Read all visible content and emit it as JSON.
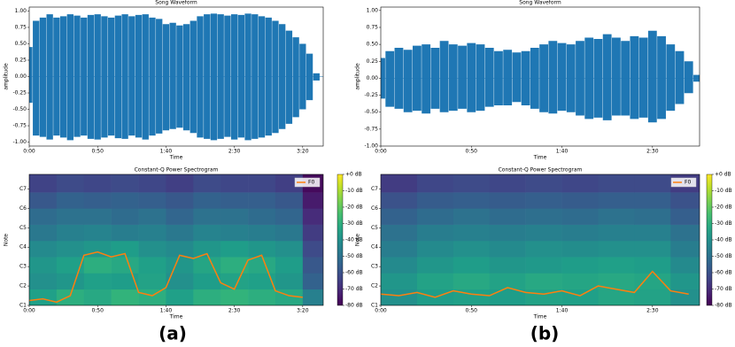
{
  "chart_data": [
    {
      "type": "area",
      "title": "Song Waveform",
      "xlabel": "Time",
      "ylabel": "amplitude",
      "color": "#1f77b4",
      "xlim": [
        0,
        215
      ],
      "ylim": [
        -1.06,
        1.06
      ],
      "xticks": [
        {
          "value": 0,
          "label": "0:00"
        },
        {
          "value": 50,
          "label": "0:50"
        },
        {
          "value": 100,
          "label": "1:40"
        },
        {
          "value": 150,
          "label": "2:30"
        },
        {
          "value": 200,
          "label": "3:20"
        }
      ],
      "yticks": [
        {
          "value": -1,
          "label": "-1.00"
        },
        {
          "value": -0.75,
          "label": "-0.75"
        },
        {
          "value": -0.5,
          "label": "-0.50"
        },
        {
          "value": -0.25,
          "label": "-0.25"
        },
        {
          "value": 0,
          "label": "0.00"
        },
        {
          "value": 0.25,
          "label": "0.25"
        },
        {
          "value": 0.5,
          "label": "0.50"
        },
        {
          "value": 0.75,
          "label": "0.75"
        },
        {
          "value": 1,
          "label": "1.00"
        }
      ],
      "x": [
        0,
        5,
        10,
        15,
        20,
        25,
        30,
        35,
        40,
        45,
        50,
        55,
        60,
        65,
        70,
        75,
        80,
        85,
        90,
        95,
        100,
        105,
        110,
        115,
        120,
        125,
        130,
        135,
        140,
        145,
        150,
        155,
        160,
        165,
        170,
        175,
        180,
        185,
        190,
        195,
        200,
        205,
        210,
        215
      ],
      "upper": [
        0.45,
        0.85,
        0.9,
        0.95,
        0.9,
        0.92,
        0.95,
        0.93,
        0.9,
        0.94,
        0.95,
        0.92,
        0.9,
        0.93,
        0.95,
        0.92,
        0.94,
        0.95,
        0.9,
        0.88,
        0.8,
        0.82,
        0.78,
        0.8,
        0.85,
        0.92,
        0.95,
        0.96,
        0.95,
        0.93,
        0.95,
        0.94,
        0.96,
        0.95,
        0.92,
        0.9,
        0.85,
        0.8,
        0.7,
        0.6,
        0.5,
        0.35,
        0.05,
        0
      ],
      "lower": [
        -0.4,
        -0.9,
        -0.92,
        -0.96,
        -0.9,
        -0.93,
        -0.97,
        -0.92,
        -0.9,
        -0.95,
        -0.96,
        -0.93,
        -0.9,
        -0.94,
        -0.95,
        -0.9,
        -0.93,
        -0.96,
        -0.9,
        -0.87,
        -0.82,
        -0.8,
        -0.78,
        -0.82,
        -0.86,
        -0.93,
        -0.95,
        -0.97,
        -0.95,
        -0.92,
        -0.96,
        -0.93,
        -0.97,
        -0.95,
        -0.93,
        -0.9,
        -0.86,
        -0.8,
        -0.72,
        -0.62,
        -0.5,
        -0.36,
        -0.06,
        0
      ]
    },
    {
      "type": "heatmap",
      "title": "Constant-Q Power Spectrogram",
      "xlabel": "Time",
      "ylabel": "Note",
      "xlim": [
        0,
        215
      ],
      "ylim": [
        24,
        105
      ],
      "zlim": [
        -80,
        0
      ],
      "legend": "upper right",
      "xticks": [
        {
          "value": 0,
          "label": "0:00"
        },
        {
          "value": 50,
          "label": "0:50"
        },
        {
          "value": 100,
          "label": "1:40"
        },
        {
          "value": 150,
          "label": "2:30"
        },
        {
          "value": 200,
          "label": "3:20"
        }
      ],
      "yticks": [
        {
          "value": 24,
          "label": "C1"
        },
        {
          "value": 36,
          "label": "C2"
        },
        {
          "value": 48,
          "label": "C3"
        },
        {
          "value": 60,
          "label": "C4"
        },
        {
          "value": 72,
          "label": "C5"
        },
        {
          "value": 84,
          "label": "C6"
        },
        {
          "value": 96,
          "label": "C7"
        }
      ],
      "zticks": [
        {
          "value": 0,
          "label": "+0 dB"
        },
        {
          "value": -10,
          "label": "-10 dB"
        },
        {
          "value": -20,
          "label": "-20 dB"
        },
        {
          "value": -30,
          "label": "-30 dB"
        },
        {
          "value": -40,
          "label": "-40 dB"
        },
        {
          "value": -50,
          "label": "-50 dB"
        },
        {
          "value": -60,
          "label": "-60 dB"
        },
        {
          "value": -70,
          "label": "-70 dB"
        },
        {
          "value": -80,
          "label": "-80 dB"
        }
      ],
      "bins": [
        0,
        20,
        40,
        60,
        80,
        100,
        120,
        140,
        160,
        180,
        200,
        215
      ],
      "note_bins": [
        24,
        34,
        44,
        54,
        64,
        74,
        84,
        94,
        105
      ],
      "z": [
        [
          -35,
          -30,
          -32,
          -28,
          -30,
          -35,
          -30,
          -28,
          -30,
          -32,
          -45
        ],
        [
          -40,
          -38,
          -35,
          -36,
          -34,
          -40,
          -36,
          -34,
          -35,
          -38,
          -55
        ],
        [
          -38,
          -35,
          -30,
          -32,
          -35,
          -38,
          -33,
          -30,
          -32,
          -36,
          -58
        ],
        [
          -42,
          -40,
          -38,
          -36,
          -40,
          -42,
          -38,
          -36,
          -38,
          -40,
          -62
        ],
        [
          -48,
          -45,
          -44,
          -46,
          -45,
          -48,
          -44,
          -45,
          -46,
          -48,
          -66
        ],
        [
          -52,
          -50,
          -50,
          -52,
          -50,
          -54,
          -50,
          -50,
          -52,
          -54,
          -70
        ],
        [
          -58,
          -55,
          -56,
          -55,
          -56,
          -58,
          -55,
          -56,
          -56,
          -58,
          -74
        ],
        [
          -64,
          -62,
          -63,
          -62,
          -63,
          -65,
          -62,
          -63,
          -63,
          -65,
          -78
        ]
      ],
      "series": [
        {
          "name": "F0",
          "color": "#ff7f0e",
          "x": [
            0,
            10,
            20,
            30,
            40,
            50,
            60,
            70,
            80,
            90,
            100,
            110,
            120,
            130,
            140,
            150,
            160,
            170,
            180,
            190,
            200
          ],
          "values": [
            27,
            28,
            26,
            30,
            55,
            57,
            54,
            56,
            32,
            30,
            35,
            55,
            53,
            56,
            38,
            34,
            52,
            55,
            33,
            30,
            29
          ]
        }
      ]
    },
    {
      "type": "area",
      "title": "Song Waveform",
      "xlabel": "Time",
      "ylabel": "amplitude",
      "color": "#1f77b4",
      "xlim": [
        0,
        176
      ],
      "ylim": [
        -1.0,
        1.05
      ],
      "xticks": [
        {
          "value": 0,
          "label": "0:00"
        },
        {
          "value": 50,
          "label": "0:50"
        },
        {
          "value": 100,
          "label": "1:40"
        },
        {
          "value": 150,
          "label": "2:30"
        }
      ],
      "yticks": [
        {
          "value": -1,
          "label": "-1.00"
        },
        {
          "value": -0.75,
          "label": "-0.75"
        },
        {
          "value": -0.5,
          "label": "-0.50"
        },
        {
          "value": -0.25,
          "label": "-0.25"
        },
        {
          "value": 0,
          "label": "0.00"
        },
        {
          "value": 0.25,
          "label": "0.25"
        },
        {
          "value": 0.5,
          "label": "0.50"
        },
        {
          "value": 0.75,
          "label": "0.75"
        },
        {
          "value": 1,
          "label": "1.00"
        }
      ],
      "x": [
        0,
        5,
        10,
        15,
        20,
        25,
        30,
        35,
        40,
        45,
        50,
        55,
        60,
        65,
        70,
        75,
        80,
        85,
        90,
        95,
        100,
        105,
        110,
        115,
        120,
        125,
        130,
        135,
        140,
        145,
        150,
        155,
        160,
        165,
        170,
        175
      ],
      "upper": [
        0.3,
        0.4,
        0.45,
        0.42,
        0.48,
        0.5,
        0.45,
        0.55,
        0.5,
        0.48,
        0.52,
        0.5,
        0.45,
        0.4,
        0.42,
        0.38,
        0.4,
        0.45,
        0.5,
        0.55,
        0.52,
        0.5,
        0.55,
        0.6,
        0.58,
        0.65,
        0.6,
        0.55,
        0.62,
        0.6,
        0.7,
        0.62,
        0.5,
        0.4,
        0.25,
        0.05
      ],
      "lower": [
        -0.3,
        -0.42,
        -0.45,
        -0.5,
        -0.48,
        -0.52,
        -0.45,
        -0.5,
        -0.48,
        -0.45,
        -0.5,
        -0.48,
        -0.42,
        -0.4,
        -0.4,
        -0.35,
        -0.4,
        -0.45,
        -0.5,
        -0.52,
        -0.48,
        -0.5,
        -0.55,
        -0.6,
        -0.58,
        -0.62,
        -0.55,
        -0.55,
        -0.6,
        -0.58,
        -0.65,
        -0.6,
        -0.48,
        -0.38,
        -0.22,
        -0.05
      ]
    },
    {
      "type": "heatmap",
      "title": "Constant-Q Power Spectrogram",
      "xlabel": "Time",
      "ylabel": "Note",
      "xlim": [
        0,
        176
      ],
      "ylim": [
        24,
        105
      ],
      "zlim": [
        -80,
        0
      ],
      "legend": "upper right",
      "xticks": [
        {
          "value": 0,
          "label": "0:00"
        },
        {
          "value": 50,
          "label": "0:50"
        },
        {
          "value": 100,
          "label": "1:40"
        },
        {
          "value": 150,
          "label": "2:30"
        }
      ],
      "yticks": [
        {
          "value": 24,
          "label": "C1"
        },
        {
          "value": 36,
          "label": "C2"
        },
        {
          "value": 48,
          "label": "C3"
        },
        {
          "value": 60,
          "label": "C4"
        },
        {
          "value": 72,
          "label": "C5"
        },
        {
          "value": 84,
          "label": "C6"
        },
        {
          "value": 96,
          "label": "C7"
        }
      ],
      "zticks": [
        {
          "value": 0,
          "label": "+0 dB"
        },
        {
          "value": -10,
          "label": "-10 dB"
        },
        {
          "value": -20,
          "label": "-20 dB"
        },
        {
          "value": -30,
          "label": "-30 dB"
        },
        {
          "value": -40,
          "label": "-40 dB"
        },
        {
          "value": -50,
          "label": "-50 dB"
        },
        {
          "value": -60,
          "label": "-60 dB"
        },
        {
          "value": -70,
          "label": "-70 dB"
        },
        {
          "value": -80,
          "label": "-80 dB"
        }
      ],
      "bins": [
        0,
        20,
        40,
        60,
        80,
        100,
        120,
        140,
        160,
        176
      ],
      "note_bins": [
        24,
        34,
        44,
        54,
        64,
        74,
        84,
        94,
        105
      ],
      "z": [
        [
          -40,
          -36,
          -35,
          -36,
          -34,
          -35,
          -33,
          -34,
          -40
        ],
        [
          -38,
          -34,
          -32,
          -34,
          -32,
          -33,
          -32,
          -33,
          -38
        ],
        [
          -42,
          -38,
          -36,
          -38,
          -37,
          -36,
          -35,
          -36,
          -42
        ],
        [
          -46,
          -42,
          -40,
          -42,
          -40,
          -41,
          -40,
          -40,
          -46
        ],
        [
          -50,
          -46,
          -45,
          -46,
          -45,
          -46,
          -45,
          -45,
          -50
        ],
        [
          -55,
          -52,
          -50,
          -52,
          -51,
          -52,
          -50,
          -51,
          -56
        ],
        [
          -60,
          -57,
          -56,
          -57,
          -56,
          -57,
          -56,
          -56,
          -60
        ],
        [
          -66,
          -63,
          -62,
          -63,
          -62,
          -63,
          -62,
          -62,
          -66
        ]
      ],
      "series": [
        {
          "name": "F0",
          "color": "#ff7f0e",
          "x": [
            0,
            10,
            20,
            30,
            40,
            50,
            60,
            70,
            80,
            90,
            100,
            110,
            120,
            130,
            140,
            150,
            160,
            170
          ],
          "values": [
            31,
            30,
            32,
            29,
            33,
            31,
            30,
            35,
            32,
            31,
            33,
            30,
            36,
            34,
            32,
            45,
            33,
            31
          ]
        }
      ]
    }
  ],
  "captions": [
    "(a)",
    "(b)"
  ]
}
